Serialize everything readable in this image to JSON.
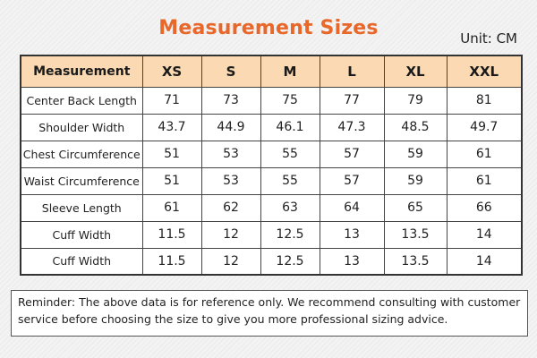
{
  "title": "Measurement Sizes",
  "unit_label": "Unit: CM",
  "colors": {
    "title": "#e8672a",
    "header_background": "#fbd9b3"
  },
  "table": {
    "header": [
      "Measurement",
      "XS",
      "S",
      "M",
      "L",
      "XL",
      "XXL"
    ],
    "rows": [
      [
        "Center Back Length",
        "71",
        "73",
        "75",
        "77",
        "79",
        "81"
      ],
      [
        "Shoulder Width",
        "43.7",
        "44.9",
        "46.1",
        "47.3",
        "48.5",
        "49.7"
      ],
      [
        "Chest Circumference",
        "51",
        "53",
        "55",
        "57",
        "59",
        "61"
      ],
      [
        "Waist Circumference",
        "51",
        "53",
        "55",
        "57",
        "59",
        "61"
      ],
      [
        "Sleeve Length",
        "61",
        "62",
        "63",
        "64",
        "65",
        "66"
      ],
      [
        "Cuff Width",
        "11.5",
        "12",
        "12.5",
        "13",
        "13.5",
        "14"
      ],
      [
        "Cuff Width",
        "11.5",
        "12",
        "12.5",
        "13",
        "13.5",
        "14"
      ]
    ]
  },
  "reminder": "Reminder: The above data is for reference only. We recommend consulting with customer service before choosing the size to give you more professional sizing advice."
}
